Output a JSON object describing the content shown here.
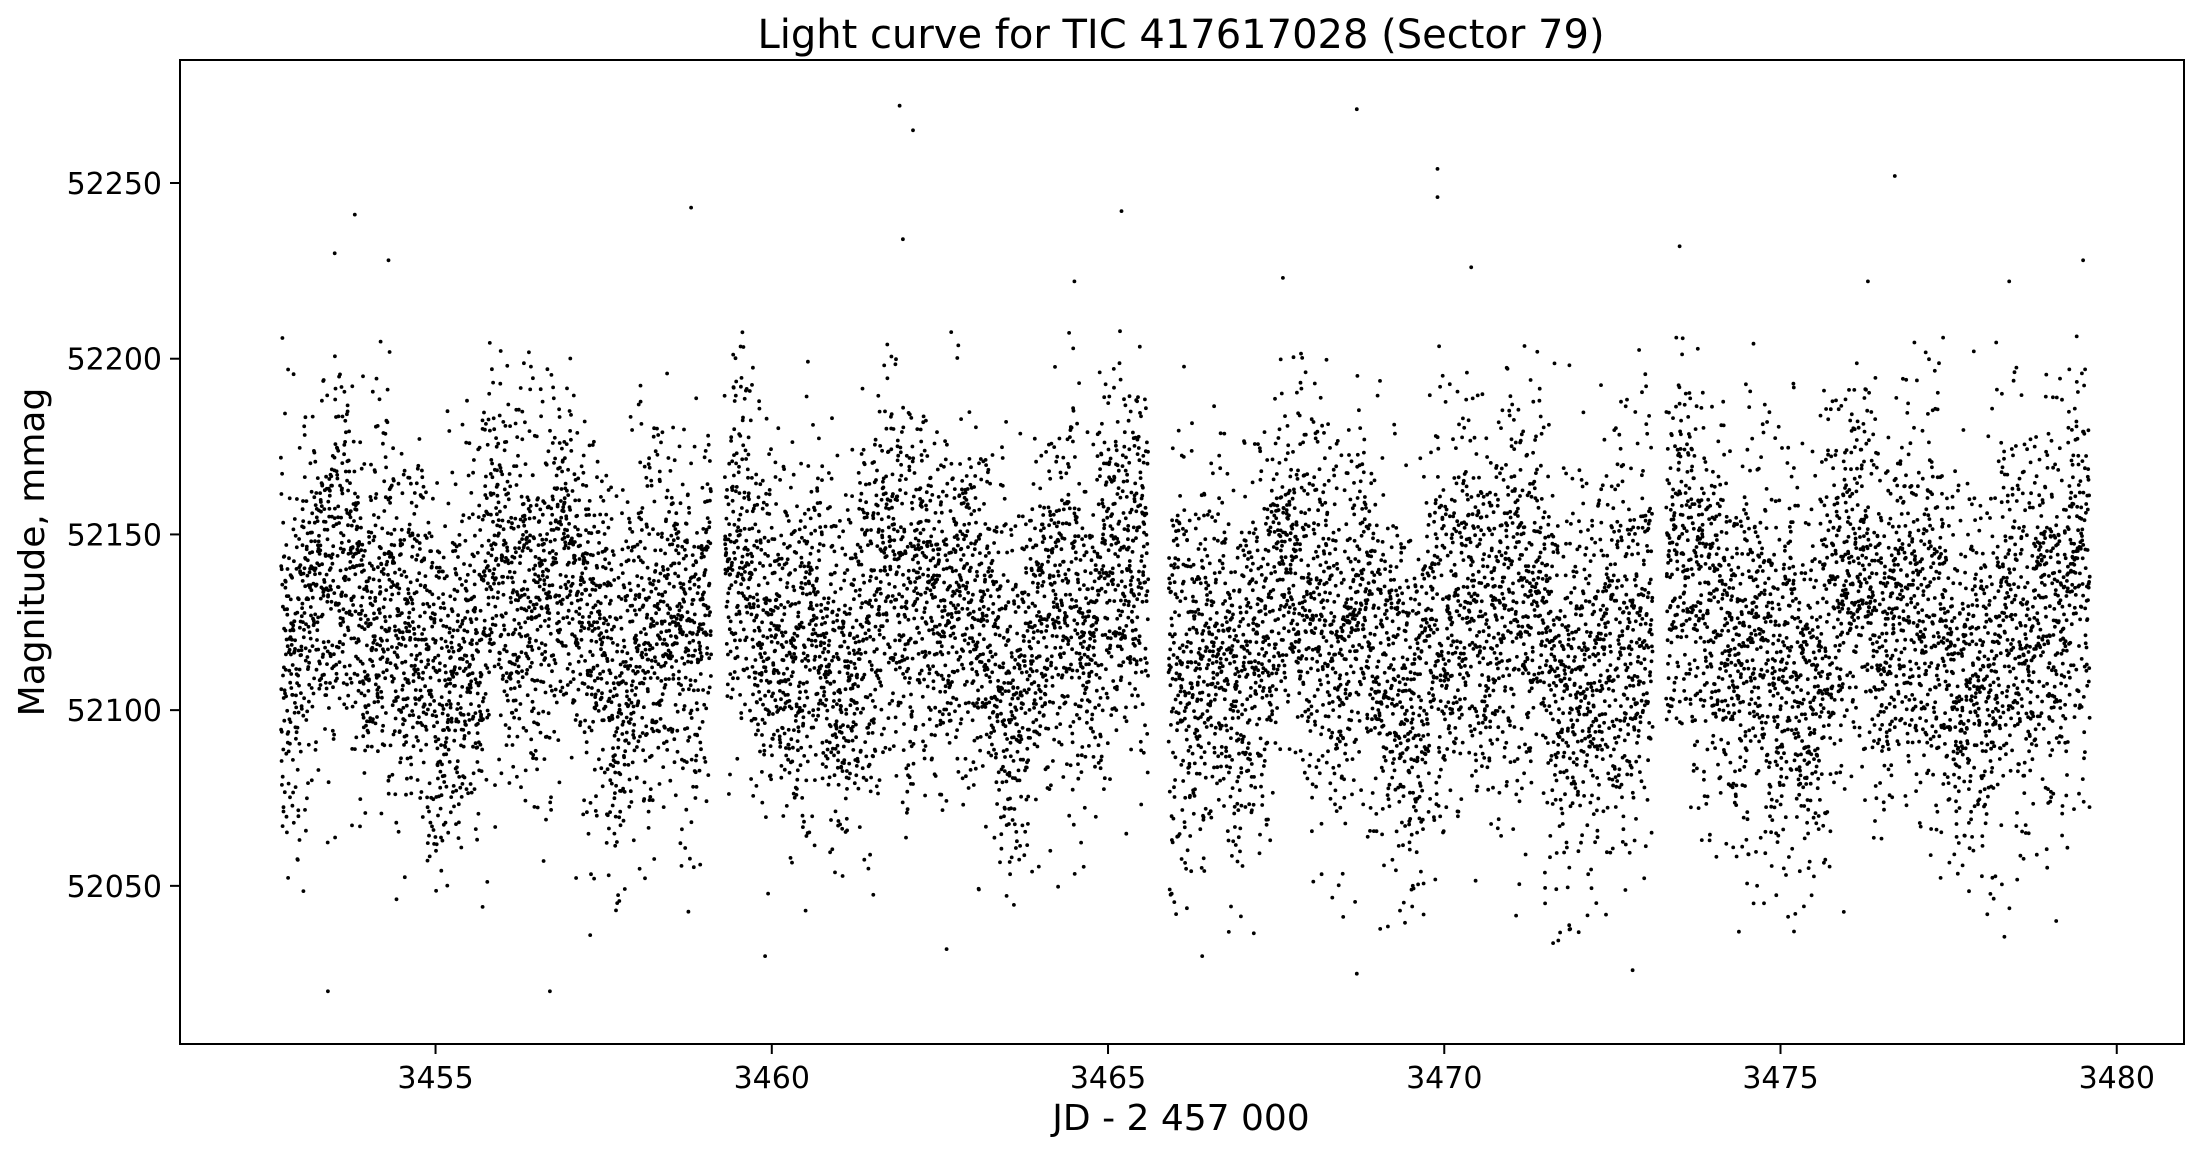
{
  "chart_data": {
    "type": "scatter",
    "title": "Light curve for TIC 417617028 (Sector 79)",
    "xlabel": "JD - 2 457 000",
    "ylabel": "Magnitude, mmag",
    "xlim": [
      3451.2,
      3481.0
    ],
    "ylim": [
      52005,
      52285
    ],
    "xticks": [
      3455,
      3460,
      3465,
      3470,
      3475,
      3480
    ],
    "yticks": [
      52050,
      52100,
      52150,
      52200,
      52250
    ],
    "grid": false,
    "legend": "none",
    "marker_color": "#000000",
    "segments": [
      {
        "x_start": 3452.7,
        "x_end": 3459.1,
        "mean": 52126,
        "spread": 27
      },
      {
        "x_start": 3459.3,
        "x_end": 3465.6,
        "mean": 52127,
        "spread": 27
      },
      {
        "x_start": 3465.9,
        "x_end": 3473.1,
        "mean": 52122,
        "spread": 28
      },
      {
        "x_start": 3473.3,
        "x_end": 3479.6,
        "mean": 52123,
        "spread": 28
      }
    ],
    "points": [
      [
        3453.4,
        52020
      ],
      [
        3453.8,
        52241
      ],
      [
        3453.5,
        52230
      ],
      [
        3454.3,
        52228
      ],
      [
        3456.7,
        52020
      ],
      [
        3458.8,
        52243
      ],
      [
        3461.9,
        52272
      ],
      [
        3462.1,
        52265
      ],
      [
        3461.95,
        52234
      ],
      [
        3465.2,
        52242
      ],
      [
        3468.7,
        52271
      ],
      [
        3468.7,
        52025
      ],
      [
        3469.9,
        52254
      ],
      [
        3469.9,
        52246
      ],
      [
        3476.7,
        52252
      ],
      [
        3479.5,
        52228
      ],
      [
        3455.7,
        52044
      ],
      [
        3457.3,
        52036
      ],
      [
        3459.9,
        52030
      ],
      [
        3462.6,
        52032
      ],
      [
        3466.4,
        52030
      ],
      [
        3472.8,
        52026
      ],
      [
        3475.2,
        52037
      ],
      [
        3479.1,
        52040
      ],
      [
        3474.6,
        52045
      ],
      [
        3471.5,
        52045
      ],
      [
        3473.5,
        52232
      ],
      [
        3476.3,
        52222
      ],
      [
        3478.4,
        52222
      ],
      [
        3464.5,
        52222
      ],
      [
        3467.6,
        52223
      ],
      [
        3470.4,
        52226
      ]
    ]
  }
}
